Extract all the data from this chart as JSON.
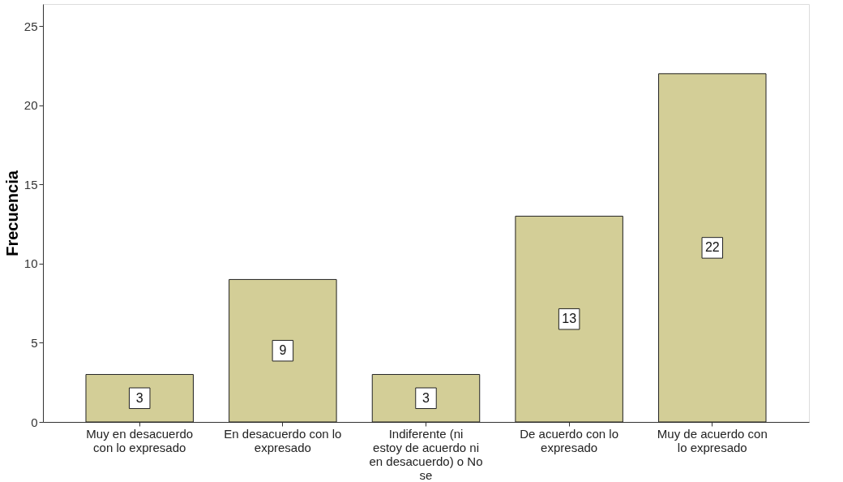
{
  "chart_data": {
    "type": "bar",
    "ylabel": "Frecuencia",
    "categories": [
      "Muy en desacuerdo con lo expresado",
      "En desacuerdo con lo expresado",
      "Indiferente (ni estoy de acuerdo ni en desacuerdo) o No se",
      "De acuerdo con lo expresado",
      "Muy de acuerdo con lo expresado"
    ],
    "values": [
      3,
      9,
      3,
      13,
      22
    ],
    "color": "#d3ce97",
    "ylim": [
      0,
      26.4
    ],
    "yticks": [
      0,
      5,
      10,
      15,
      20,
      25
    ],
    "grid": false,
    "data_labels": true
  }
}
